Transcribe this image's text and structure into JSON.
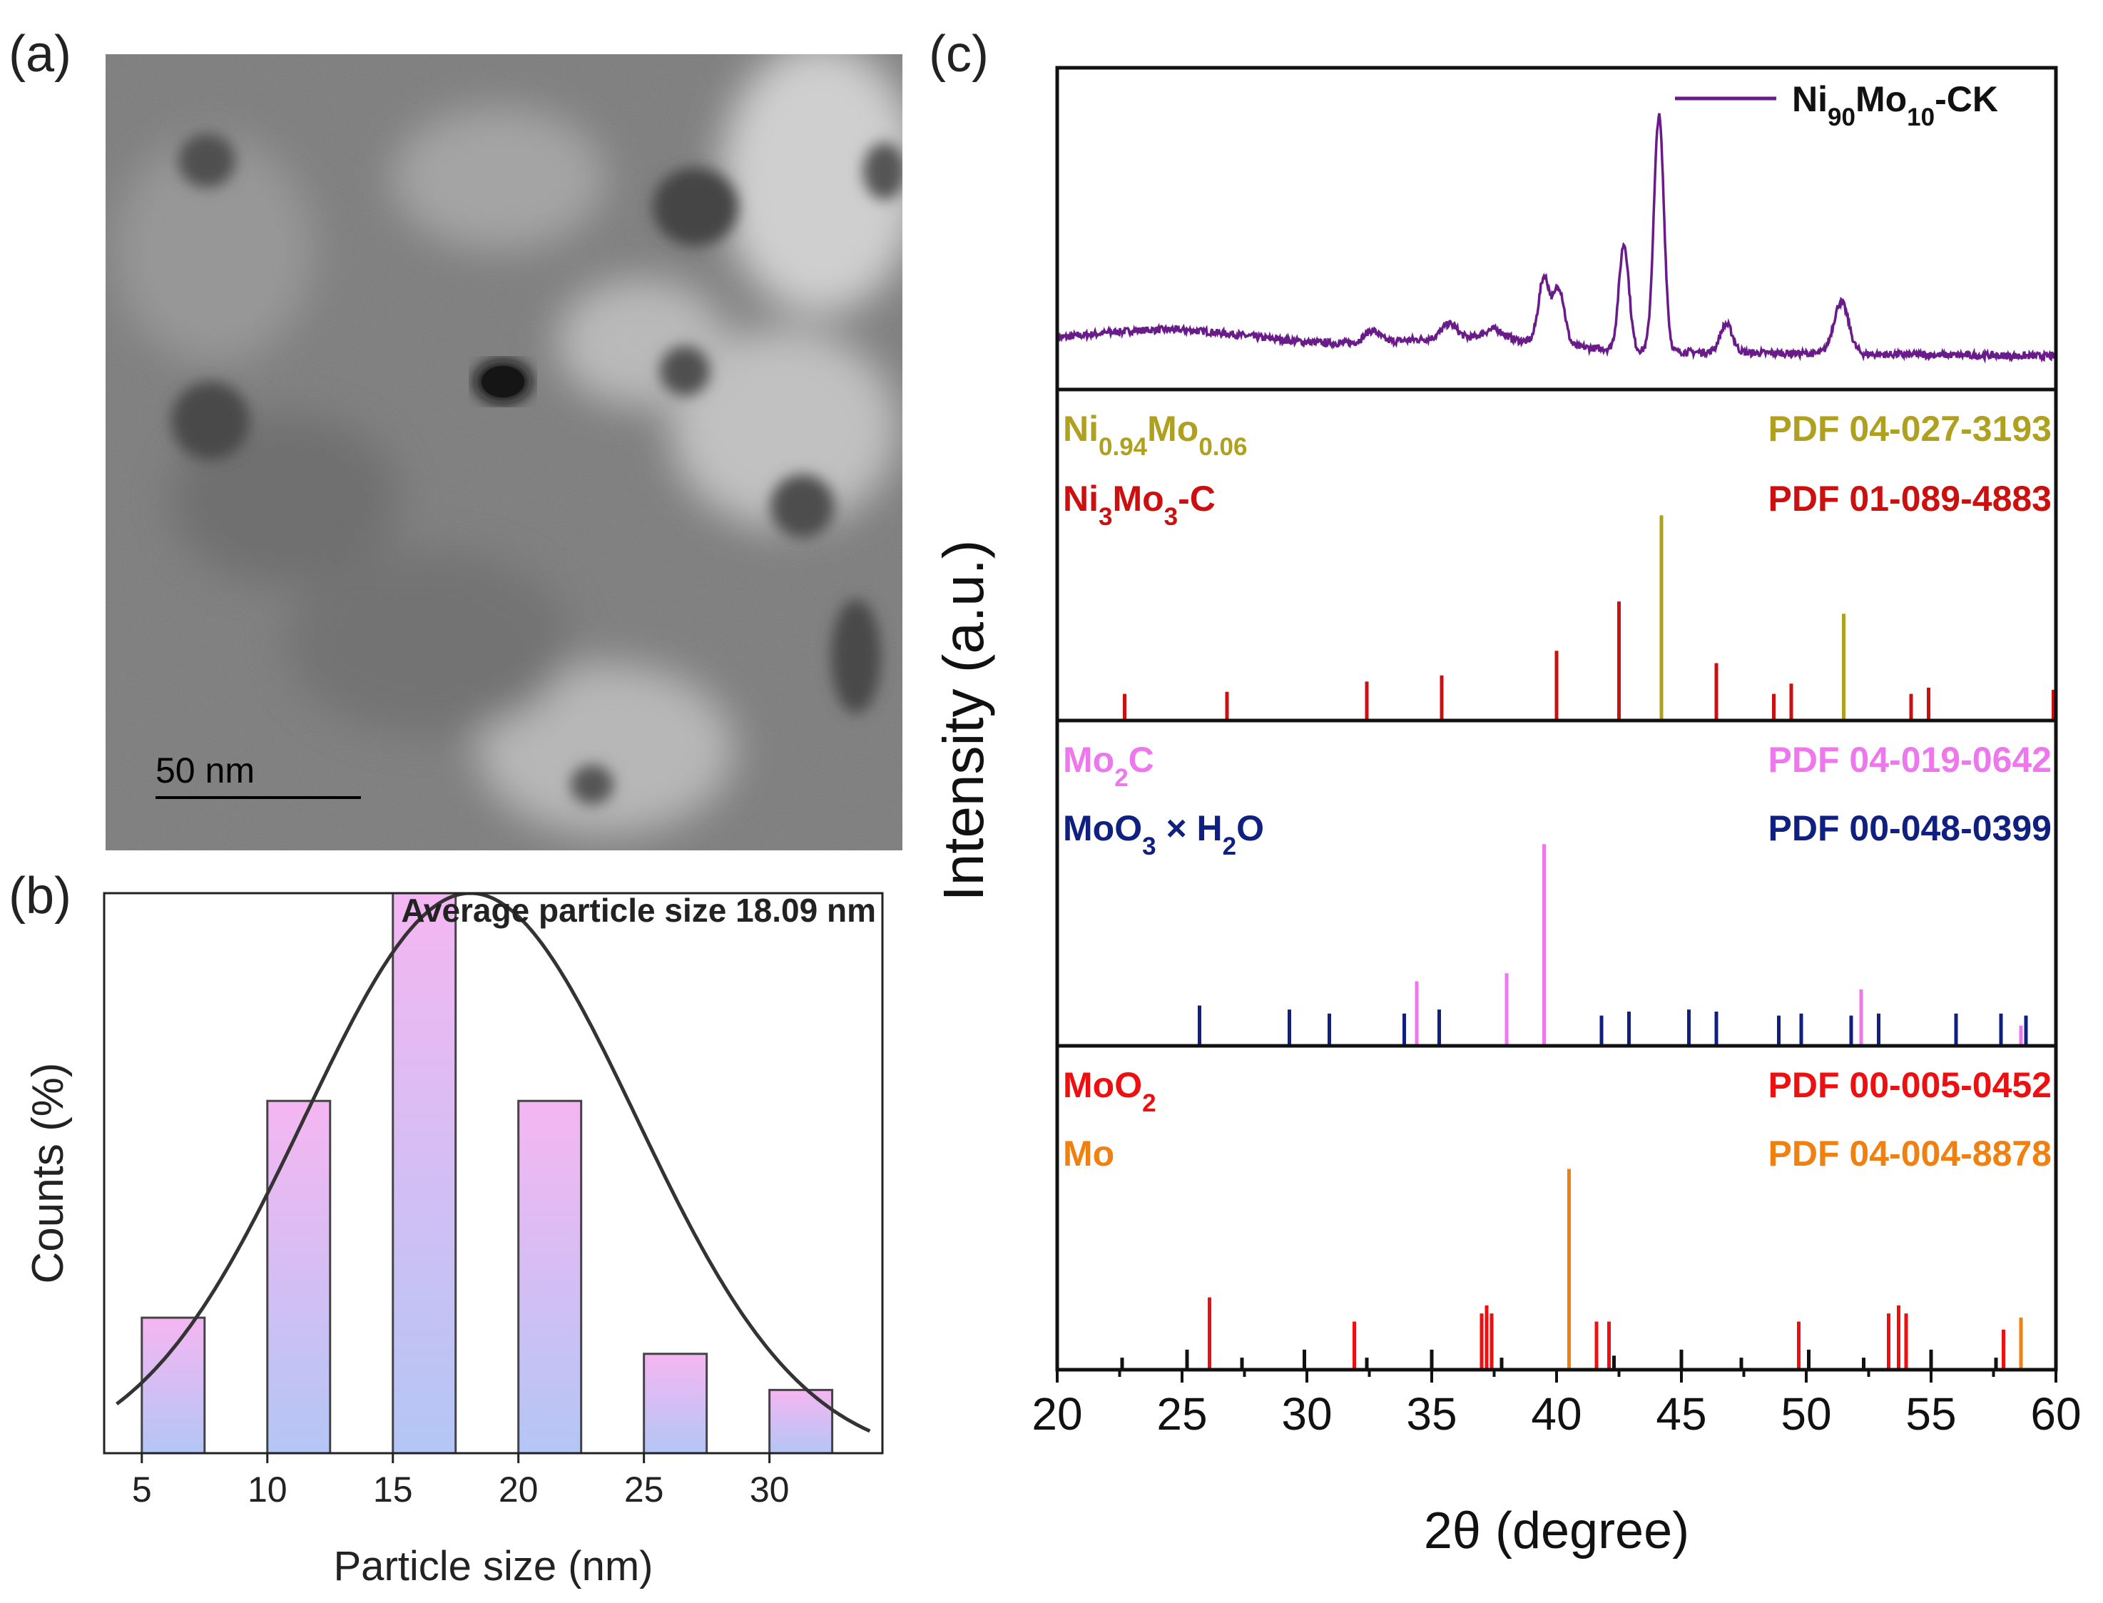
{
  "panels": {
    "a": {
      "letter": "(a)",
      "scale_bar_label": "50 nm"
    },
    "b": {
      "letter": "(b)"
    },
    "c": {
      "letter": "(c)"
    }
  },
  "colors": {
    "bar_top": "#f5b6f2",
    "bar_bottom": "#b3c6f5",
    "curve": "#333333",
    "xrd_line": "#6a1b8a",
    "ni_mo_solid": "#b0a020",
    "ni3mo3c": "#cc1010",
    "mo2c": "#ee77ee",
    "moo3": "#102080",
    "moo2": "#ee1010",
    "mo": "#f08010",
    "mo_black": "#111111"
  },
  "chart_data": [
    {
      "id": "histogram",
      "type": "bar",
      "title": "Average particle size 18.09 nm",
      "xlabel": "Particle size (nm)",
      "ylabel": "Counts (%)",
      "xlim": [
        3.5,
        34.5
      ],
      "ylim": [
        0,
        31
      ],
      "xticks": [
        5,
        10,
        15,
        20,
        25,
        30
      ],
      "bin_width": 2.5,
      "bins": [
        {
          "center": 6.25,
          "value": 7.5
        },
        {
          "center": 11.25,
          "value": 19.5
        },
        {
          "center": 16.25,
          "value": 31.5
        },
        {
          "center": 21.25,
          "value": 19.5
        },
        {
          "center": 26.25,
          "value": 5.5
        },
        {
          "center": 31.25,
          "value": 3.5
        }
      ],
      "fit": {
        "type": "gaussian",
        "mean": 18.09,
        "sigma": 6.6,
        "peak": 31.0,
        "baseline": -0.5
      }
    },
    {
      "id": "xrd",
      "type": "line",
      "xlabel": "2θ (degree)",
      "ylabel": "Intensity (a.u.)",
      "xlim": [
        20,
        60
      ],
      "xticks": [
        20,
        25,
        30,
        35,
        40,
        45,
        50,
        55,
        60
      ],
      "pattern": {
        "legend": {
          "main": "Ni",
          "sub1": "90",
          "mid": "Mo",
          "sub2": "10",
          "tail": "-CK"
        },
        "noise_seed": 7,
        "peaks": [
          {
            "x": 39.5,
            "h": 0.28,
            "w": 0.22
          },
          {
            "x": 40.1,
            "h": 0.24,
            "w": 0.22
          },
          {
            "x": 42.7,
            "h": 0.45,
            "w": 0.2
          },
          {
            "x": 44.1,
            "h": 1.0,
            "w": 0.2
          },
          {
            "x": 46.8,
            "h": 0.12,
            "w": 0.25
          },
          {
            "x": 51.4,
            "h": 0.22,
            "w": 0.3
          },
          {
            "x": 32.6,
            "h": 0.05,
            "w": 0.3
          },
          {
            "x": 35.7,
            "h": 0.06,
            "w": 0.3
          },
          {
            "x": 37.5,
            "h": 0.04,
            "w": 0.4
          }
        ],
        "background": [
          {
            "x": 24.5,
            "h": 0.07,
            "w": 3.5
          },
          {
            "x": 36.5,
            "h": 0.05,
            "w": 3.0
          }
        ]
      },
      "references": [
        {
          "id": "ref1",
          "phases": [
            {
              "name": "Ni",
              "sub": "0.94",
              "name2": "Mo",
              "sub2": "0.06",
              "pdf": "PDF 04-027-3193",
              "color_key": "ni_mo_solid",
              "sticks": [
                [
                  44.2,
                  1.0
                ],
                [
                  51.5,
                  0.52
                ]
              ]
            },
            {
              "name": "Ni",
              "sub": "3",
              "name2": "Mo",
              "sub2": "3",
              "tail": "-C",
              "pdf": "PDF 01-089-4883",
              "color_key": "ni3mo3c",
              "sticks": [
                [
                  22.7,
                  0.13
                ],
                [
                  26.8,
                  0.14
                ],
                [
                  32.4,
                  0.19
                ],
                [
                  35.4,
                  0.22
                ],
                [
                  40.0,
                  0.34
                ],
                [
                  42.5,
                  0.58
                ],
                [
                  46.4,
                  0.28
                ],
                [
                  48.7,
                  0.13
                ],
                [
                  49.4,
                  0.18
                ],
                [
                  54.2,
                  0.13
                ],
                [
                  54.9,
                  0.16
                ],
                [
                  59.9,
                  0.15
                ]
              ]
            }
          ]
        },
        {
          "id": "ref2",
          "phases": [
            {
              "name": "Mo",
              "sub": "2",
              "tail": "C",
              "pdf": "PDF 04-019-0642",
              "color_key": "mo2c",
              "sticks": [
                [
                  34.4,
                  0.32
                ],
                [
                  38.0,
                  0.36
                ],
                [
                  39.5,
                  1.0
                ],
                [
                  52.2,
                  0.28
                ],
                [
                  58.6,
                  0.1
                ]
              ]
            },
            {
              "name": "MoO",
              "sub": "3",
              "tail": " × H",
              "sub2": "2",
              "tail2": "O",
              "pdf": "PDF 00-048-0399",
              "color_key": "moo3",
              "sticks": [
                [
                  25.7,
                  0.2
                ],
                [
                  29.3,
                  0.18
                ],
                [
                  30.9,
                  0.16
                ],
                [
                  33.9,
                  0.16
                ],
                [
                  35.3,
                  0.18
                ],
                [
                  41.8,
                  0.15
                ],
                [
                  42.9,
                  0.17
                ],
                [
                  45.3,
                  0.18
                ],
                [
                  46.4,
                  0.17
                ],
                [
                  48.9,
                  0.15
                ],
                [
                  49.8,
                  0.16
                ],
                [
                  51.8,
                  0.15
                ],
                [
                  52.9,
                  0.16
                ],
                [
                  56.0,
                  0.16
                ],
                [
                  57.8,
                  0.16
                ],
                [
                  58.8,
                  0.15
                ]
              ]
            }
          ]
        },
        {
          "id": "ref3",
          "phases": [
            {
              "name": "MoO",
              "sub": "2",
              "pdf": "PDF 00-005-0452",
              "color_key": "moo2",
              "sticks": [
                [
                  26.1,
                  0.36
                ],
                [
                  31.9,
                  0.24
                ],
                [
                  37.0,
                  0.28
                ],
                [
                  37.2,
                  0.32
                ],
                [
                  37.4,
                  0.28
                ],
                [
                  41.6,
                  0.24
                ],
                [
                  42.1,
                  0.24
                ],
                [
                  49.7,
                  0.24
                ],
                [
                  53.3,
                  0.28
                ],
                [
                  53.7,
                  0.32
                ],
                [
                  54.0,
                  0.28
                ],
                [
                  57.9,
                  0.2
                ]
              ]
            },
            {
              "name": "Mo",
              "pdf": "PDF 04-004-8878",
              "color_key": "mo",
              "sticks": [
                [
                  40.5,
                  1.0
                ],
                [
                  58.6,
                  0.26
                ]
              ]
            },
            {
              "hidden_label": true,
              "color_key": "mo_black",
              "sticks": [
                [
                  22.6,
                  0.06
                ],
                [
                  25.2,
                  0.1
                ],
                [
                  27.4,
                  0.06
                ],
                [
                  29.9,
                  0.1
                ],
                [
                  32.4,
                  0.06
                ],
                [
                  35.0,
                  0.1
                ],
                [
                  37.8,
                  0.06
                ],
                [
                  42.3,
                  0.07
                ],
                [
                  45.0,
                  0.1
                ],
                [
                  47.4,
                  0.06
                ],
                [
                  50.1,
                  0.1
                ],
                [
                  52.3,
                  0.06
                ],
                [
                  55.0,
                  0.1
                ],
                [
                  57.6,
                  0.06
                ]
              ]
            }
          ]
        }
      ]
    }
  ]
}
